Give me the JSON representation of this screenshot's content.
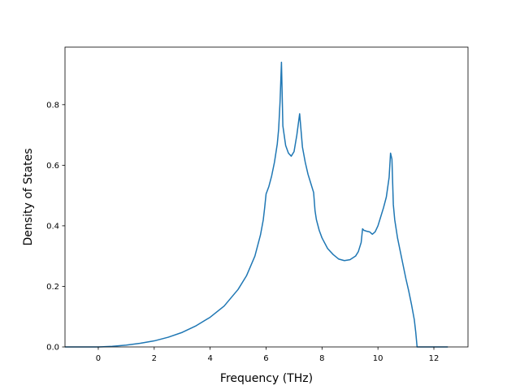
{
  "chart_data": {
    "type": "line",
    "title": "",
    "xlabel": "Frequency (THz)",
    "ylabel": "Density of States",
    "xlim": [
      -1.19,
      13.22
    ],
    "ylim": [
      0.0,
      0.99
    ],
    "xticks": [
      0,
      2,
      4,
      6,
      8,
      10,
      12
    ],
    "yticks": [
      0.0,
      0.2,
      0.4,
      0.6,
      0.8
    ],
    "ytick_labels": [
      "0.0",
      "0.2",
      "0.4",
      "0.6",
      "0.8"
    ],
    "grid": false,
    "series": [
      {
        "color": "#1f77b4",
        "x": [
          -1.19,
          -0.5,
          0.0,
          0.5,
          1.0,
          1.5,
          2.0,
          2.5,
          3.0,
          3.5,
          4.0,
          4.5,
          5.0,
          5.3,
          5.6,
          5.8,
          5.9,
          5.95,
          6.0,
          6.1,
          6.2,
          6.3,
          6.4,
          6.45,
          6.5,
          6.55,
          6.6,
          6.7,
          6.8,
          6.9,
          7.0,
          7.1,
          7.2,
          7.3,
          7.4,
          7.5,
          7.6,
          7.7,
          7.75,
          7.8,
          7.9,
          8.0,
          8.2,
          8.4,
          8.6,
          8.8,
          9.0,
          9.2,
          9.3,
          9.4,
          9.45,
          9.5,
          9.6,
          9.7,
          9.8,
          9.9,
          10.0,
          10.1,
          10.2,
          10.3,
          10.4,
          10.45,
          10.5,
          10.55,
          10.6,
          10.7,
          10.8,
          10.9,
          11.0,
          11.1,
          11.2,
          11.3,
          11.35,
          11.4,
          11.45,
          11.5,
          11.8,
          12.2,
          12.5
        ],
        "y": [
          0.0,
          0.0,
          0.0,
          0.002,
          0.006,
          0.012,
          0.02,
          0.032,
          0.048,
          0.07,
          0.098,
          0.135,
          0.19,
          0.235,
          0.3,
          0.37,
          0.42,
          0.46,
          0.505,
          0.53,
          0.565,
          0.61,
          0.67,
          0.72,
          0.81,
          0.94,
          0.73,
          0.665,
          0.64,
          0.63,
          0.645,
          0.7,
          0.77,
          0.66,
          0.61,
          0.57,
          0.54,
          0.51,
          0.45,
          0.42,
          0.385,
          0.36,
          0.325,
          0.305,
          0.29,
          0.285,
          0.288,
          0.3,
          0.315,
          0.345,
          0.39,
          0.385,
          0.382,
          0.38,
          0.372,
          0.38,
          0.4,
          0.43,
          0.46,
          0.495,
          0.56,
          0.64,
          0.62,
          0.47,
          0.42,
          0.36,
          0.315,
          0.27,
          0.225,
          0.185,
          0.14,
          0.09,
          0.05,
          0.0,
          0.0,
          0.0,
          0.0,
          0.0,
          0.0
        ]
      }
    ]
  }
}
